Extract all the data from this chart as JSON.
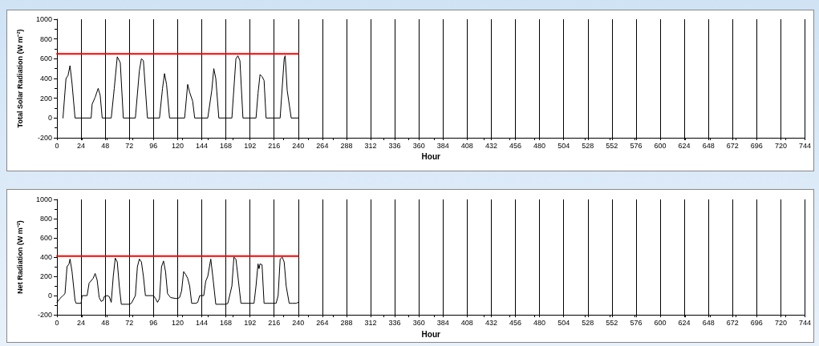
{
  "chart_data": [
    {
      "type": "line",
      "xlabel": "Hour",
      "ylabel": "Total Solar Radiation (W m⁻²)",
      "xlim": [
        0,
        744
      ],
      "xticks": [
        0,
        24,
        48,
        72,
        96,
        120,
        144,
        168,
        192,
        216,
        240,
        264,
        288,
        312,
        336,
        360,
        384,
        408,
        432,
        456,
        480,
        504,
        528,
        552,
        576,
        600,
        624,
        648,
        672,
        696,
        720,
        744
      ],
      "ylim": [
        -200,
        1000
      ],
      "yticks": [
        -200,
        0,
        200,
        400,
        600,
        800,
        1000
      ],
      "grid": "x",
      "marker": "none",
      "line_style": "solid",
      "series": [
        {
          "color": "#000000",
          "x": [
            6,
            9,
            11,
            13,
            15,
            18,
            24,
            34,
            35,
            38,
            41,
            43,
            45,
            48,
            54,
            57,
            60,
            63,
            66,
            72,
            78,
            82,
            84,
            86,
            90,
            96,
            102,
            105,
            107,
            109,
            112,
            120,
            127,
            130,
            132,
            135,
            137,
            144,
            150,
            154,
            156,
            158,
            161,
            168,
            174,
            178,
            180,
            182,
            185,
            192,
            198,
            200,
            202,
            204,
            206,
            208,
            216,
            222,
            226,
            227,
            229,
            233,
            240
          ],
          "values": [
            0,
            400,
            430,
            530,
            350,
            0,
            0,
            0,
            140,
            210,
            300,
            230,
            0,
            0,
            0,
            300,
            620,
            560,
            0,
            0,
            0,
            480,
            600,
            580,
            0,
            0,
            0,
            300,
            450,
            340,
            0,
            0,
            0,
            340,
            260,
            170,
            0,
            0,
            0,
            280,
            500,
            400,
            0,
            0,
            0,
            600,
            630,
            580,
            0,
            0,
            0,
            250,
            440,
            420,
            380,
            0,
            0,
            0,
            600,
            630,
            280,
            0,
            0
          ]
        },
        {
          "color": "#ff0000",
          "x": [
            0,
            240
          ],
          "values": [
            650,
            650
          ]
        }
      ]
    },
    {
      "type": "line",
      "xlabel": "Hour",
      "ylabel": "Net Radiation (W m⁻²)",
      "xlim": [
        0,
        744
      ],
      "xticks": [
        0,
        24,
        48,
        72,
        96,
        120,
        144,
        168,
        192,
        216,
        240,
        264,
        288,
        312,
        336,
        360,
        384,
        408,
        432,
        456,
        480,
        504,
        528,
        552,
        576,
        600,
        624,
        648,
        672,
        696,
        720,
        744
      ],
      "ylim": [
        -200,
        1000
      ],
      "yticks": [
        -200,
        0,
        200,
        400,
        600,
        800,
        1000
      ],
      "grid": "x",
      "marker": "none",
      "line_style": "solid",
      "series": [
        {
          "color": "#000000",
          "x": [
            0,
            3,
            6,
            8,
            10,
            12,
            13,
            15,
            18,
            19,
            24,
            25,
            30,
            32,
            36,
            38,
            40,
            42,
            44,
            46,
            47,
            50,
            52,
            54,
            56,
            58,
            60,
            62,
            64,
            72,
            74,
            78,
            80,
            82,
            84,
            86,
            88,
            96,
            98,
            100,
            102,
            104,
            106,
            108,
            110,
            113,
            118,
            120,
            122,
            124,
            126,
            128,
            130,
            132,
            134,
            138,
            140,
            142,
            146,
            148,
            150,
            153,
            155,
            158,
            168,
            170,
            174,
            176,
            178,
            180,
            183,
            192,
            196,
            198,
            200,
            201,
            202,
            204,
            206,
            216,
            218,
            220,
            222,
            224,
            226,
            228,
            231,
            234,
            238,
            240
          ],
          "values": [
            -70,
            -30,
            0,
            20,
            300,
            330,
            380,
            250,
            -50,
            -80,
            -80,
            0,
            0,
            130,
            180,
            230,
            160,
            -20,
            -60,
            -50,
            -10,
            0,
            -10,
            -70,
            200,
            390,
            350,
            100,
            -90,
            -90,
            -80,
            0,
            300,
            380,
            350,
            200,
            0,
            0,
            -30,
            -70,
            -30,
            300,
            360,
            250,
            20,
            -20,
            -30,
            -30,
            -20,
            50,
            250,
            220,
            180,
            100,
            -80,
            -80,
            -70,
            0,
            0,
            150,
            200,
            380,
            200,
            -90,
            -90,
            -80,
            100,
            400,
            380,
            200,
            -80,
            -80,
            -80,
            100,
            330,
            280,
            330,
            320,
            -80,
            -80,
            -80,
            0,
            380,
            400,
            350,
            100,
            -80,
            -80,
            -80,
            -70
          ]
        },
        {
          "color": "#ff0000",
          "x": [
            0,
            240
          ],
          "values": [
            410,
            410
          ]
        }
      ]
    }
  ]
}
